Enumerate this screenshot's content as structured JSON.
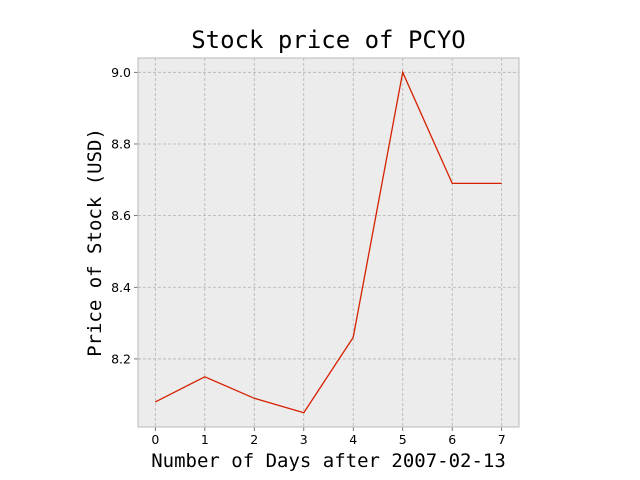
{
  "chart_data": {
    "type": "line",
    "title": "Stock price of PCYO",
    "xlabel": "Number of Days after 2007-02-13",
    "ylabel": "Price of Stock (USD)",
    "x": [
      0,
      1,
      2,
      3,
      4,
      5,
      6,
      7
    ],
    "series": [
      {
        "values": [
          8.08,
          8.15,
          8.09,
          8.05,
          8.26,
          9.0,
          8.69,
          8.69
        ],
        "color": "#d62000"
      }
    ],
    "xlim": [
      -0.35,
      7.35
    ],
    "ylim": [
      8.01,
      9.04
    ],
    "xticks": [
      0,
      1,
      2,
      3,
      4,
      5,
      6,
      7
    ],
    "xtick_labels": [
      "0",
      "1",
      "2",
      "3",
      "4",
      "5",
      "6",
      "7"
    ],
    "yticks": [
      8.2,
      8.4,
      8.6,
      8.8,
      9.0
    ],
    "ytick_labels": [
      "8.2",
      "8.4",
      "8.6",
      "8.8",
      "9.0"
    ],
    "grid": true,
    "colors": {
      "background": "#ececec",
      "grid": "#b2b2b2",
      "frame": "#b9b9b9"
    }
  }
}
